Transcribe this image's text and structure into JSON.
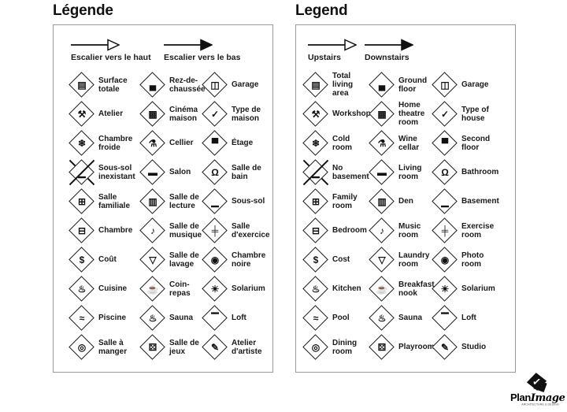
{
  "colors": {
    "ink": "#1a1a1a",
    "panel_border": "#999999",
    "background": "#ffffff"
  },
  "icon_glyphs": {
    "total-living-area": "▤",
    "ground-floor": "▄",
    "garage": "◫",
    "workshop": "⚒",
    "home-theatre-room": "▦",
    "type-of-house": "✓",
    "cold-room": "❄",
    "wine-cellar": "⚗",
    "second-floor": "▀",
    "no-basement": "▁",
    "living-room": "▬",
    "bathroom": "Ω",
    "family-room": "⊞",
    "den": "▥",
    "basement": "▁",
    "bedroom": "⊟",
    "music-room": "♪",
    "exercise-room": "╪",
    "cost": "$",
    "laundry-room": "▽",
    "photo-room": "◉",
    "kitchen": "♨",
    "breakfast-nook": "☕",
    "solarium": "☀",
    "pool": "≈",
    "sauna": "♨",
    "loft": "▔",
    "dining-room": "◎",
    "playroom": "⚄",
    "studio": "✎"
  },
  "panels": [
    {
      "title": "Légende",
      "arrows": [
        {
          "label": "Escalier vers le haut",
          "style": "outline"
        },
        {
          "label": "Escalier vers le bas",
          "style": "solid"
        }
      ],
      "items": [
        {
          "icon": "total-living-area",
          "label": "Surface\ntotale"
        },
        {
          "icon": "ground-floor",
          "label": "Rez-de-\nchaussée"
        },
        {
          "icon": "garage",
          "label": "Garage"
        },
        {
          "icon": "workshop",
          "label": "Atelier"
        },
        {
          "icon": "home-theatre-room",
          "label": "Cinéma\nmaison"
        },
        {
          "icon": "type-of-house",
          "label": "Type de\nmaison"
        },
        {
          "icon": "cold-room",
          "label": "Chambre\nfroide"
        },
        {
          "icon": "wine-cellar",
          "label": "Cellier"
        },
        {
          "icon": "second-floor",
          "label": "Étage"
        },
        {
          "icon": "no-basement",
          "label": "Sous-sol\ninexistant"
        },
        {
          "icon": "living-room",
          "label": "Salon"
        },
        {
          "icon": "bathroom",
          "label": "Salle de\nbain"
        },
        {
          "icon": "family-room",
          "label": "Salle\nfamiliale"
        },
        {
          "icon": "den",
          "label": "Salle de\nlecture"
        },
        {
          "icon": "basement",
          "label": "Sous-sol"
        },
        {
          "icon": "bedroom",
          "label": "Chambre"
        },
        {
          "icon": "music-room",
          "label": "Salle de\nmusique"
        },
        {
          "icon": "exercise-room",
          "label": "Salle\nd'exercice"
        },
        {
          "icon": "cost",
          "label": "Coût"
        },
        {
          "icon": "laundry-room",
          "label": "Salle de\nlavage"
        },
        {
          "icon": "photo-room",
          "label": "Chambre\nnoire"
        },
        {
          "icon": "kitchen",
          "label": "Cuisine"
        },
        {
          "icon": "breakfast-nook",
          "label": "Coin-\nrepas"
        },
        {
          "icon": "solarium",
          "label": "Solarium"
        },
        {
          "icon": "pool",
          "label": "Piscine"
        },
        {
          "icon": "sauna",
          "label": "Sauna"
        },
        {
          "icon": "loft",
          "label": "Loft"
        },
        {
          "icon": "dining-room",
          "label": "Salle à\nmanger"
        },
        {
          "icon": "playroom",
          "label": "Salle de\njeux"
        },
        {
          "icon": "studio",
          "label": "Atelier\nd'artiste"
        }
      ]
    },
    {
      "title": "Legend",
      "arrows": [
        {
          "label": "Upstairs",
          "style": "outline"
        },
        {
          "label": "Downstairs",
          "style": "solid"
        }
      ],
      "items": [
        {
          "icon": "total-living-area",
          "label": "Total\nliving\narea"
        },
        {
          "icon": "ground-floor",
          "label": "Ground\nfloor"
        },
        {
          "icon": "garage",
          "label": "Garage"
        },
        {
          "icon": "workshop",
          "label": "Workshop"
        },
        {
          "icon": "home-theatre-room",
          "label": "Home\ntheatre\nroom"
        },
        {
          "icon": "type-of-house",
          "label": "Type of\nhouse"
        },
        {
          "icon": "cold-room",
          "label": "Cold\nroom"
        },
        {
          "icon": "wine-cellar",
          "label": "Wine\ncellar"
        },
        {
          "icon": "second-floor",
          "label": "Second\nfloor"
        },
        {
          "icon": "no-basement",
          "label": "No\nbasement"
        },
        {
          "icon": "living-room",
          "label": "Living\nroom"
        },
        {
          "icon": "bathroom",
          "label": "Bathroom"
        },
        {
          "icon": "family-room",
          "label": "Family\nroom"
        },
        {
          "icon": "den",
          "label": "Den"
        },
        {
          "icon": "basement",
          "label": "Basement"
        },
        {
          "icon": "bedroom",
          "label": "Bedroom"
        },
        {
          "icon": "music-room",
          "label": "Music\nroom"
        },
        {
          "icon": "exercise-room",
          "label": "Exercise\nroom"
        },
        {
          "icon": "cost",
          "label": "Cost"
        },
        {
          "icon": "laundry-room",
          "label": "Laundry\nroom"
        },
        {
          "icon": "photo-room",
          "label": "Photo\nroom"
        },
        {
          "icon": "kitchen",
          "label": "Kitchen"
        },
        {
          "icon": "breakfast-nook",
          "label": "Breakfast\nnook"
        },
        {
          "icon": "solarium",
          "label": "Solarium"
        },
        {
          "icon": "pool",
          "label": "Pool"
        },
        {
          "icon": "sauna",
          "label": "Sauna"
        },
        {
          "icon": "loft",
          "label": "Loft"
        },
        {
          "icon": "dining-room",
          "label": "Dining\nroom"
        },
        {
          "icon": "playroom",
          "label": "Playroom"
        },
        {
          "icon": "studio",
          "label": "Studio"
        }
      ]
    }
  ],
  "logo": {
    "name_bold": "Plan",
    "name_italic": "Image",
    "tagline": "ARCHITECTURE & DESIGN",
    "mark_glyph": "✓"
  }
}
